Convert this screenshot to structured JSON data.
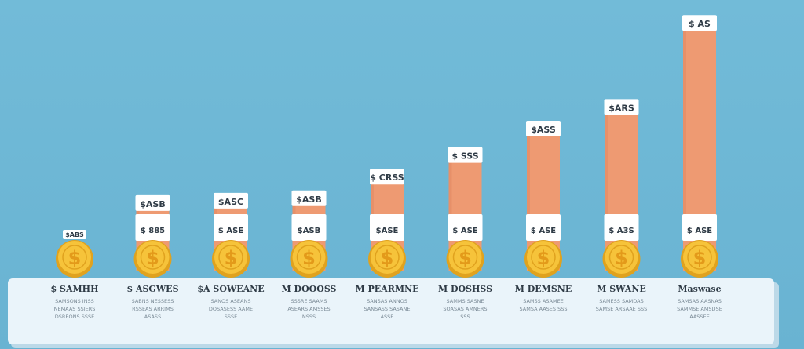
{
  "colors": {
    "background": "#6fb8d6",
    "bar": "#ee9a72",
    "bar_dark": "#e08560",
    "coin": "#f6c33a",
    "coin_rim": "#e0a21e",
    "coin_symbol": "#e39a1a",
    "tag": "#ffffff",
    "panel": "#eaf4fa",
    "panel_shadow": "#bcd9e8",
    "text": "#2f3b46",
    "text_muted": "#7a8a96"
  },
  "coin_symbol": "$",
  "chart_data": {
    "type": "bar",
    "categories": [
      "$ SAMHH",
      "$ ASGWES",
      "$A SOWEANE",
      "M DOOOSS",
      "M PEARMNE",
      "M DOSHSS",
      "M DEMSNE",
      "M SWANE",
      "Maswase"
    ],
    "values": [
      0,
      2,
      3,
      4,
      13,
      22,
      33,
      42,
      77
    ],
    "value_labels": [
      "$ABS",
      "$ASB",
      "$ASC",
      "$ASB",
      "$ CRSS",
      "$ SSS",
      "$ASS",
      "$ARS",
      "$ AS"
    ],
    "coin_tag_labels": [
      "",
      "$ 885",
      "$ ASE",
      "$ASB",
      "$ASE",
      "$ ASE",
      "$ ASE",
      "$ A3S",
      "$ ASE"
    ],
    "descriptions": [
      "SAMSONS INSS NEMAAS SSIERS DSREONS SSSE",
      "SABNS NESSESS RSSEAS ARRIMS ASASS",
      "SANOS ASEANS DOSASESS AAME SSSE",
      "SSSRE SAAMS ASEARS AMSSES NSSS",
      "SANSAS ANNOS SANSASS SASANE ASSE",
      "SAMMS SASNE SOASAS AMNERS SSS",
      "SAMSS ASAMEE SAMSA AASES SSS",
      "SAMESS SAMDAS SAMSE ARSAAE SSS",
      "SAMSAS AASNAS SAMMSE AMSDSE AASSEE"
    ],
    "ylim": [
      0,
      80
    ],
    "grid": false,
    "legend": "none",
    "title": "",
    "xlabel": "",
    "ylabel": ""
  }
}
